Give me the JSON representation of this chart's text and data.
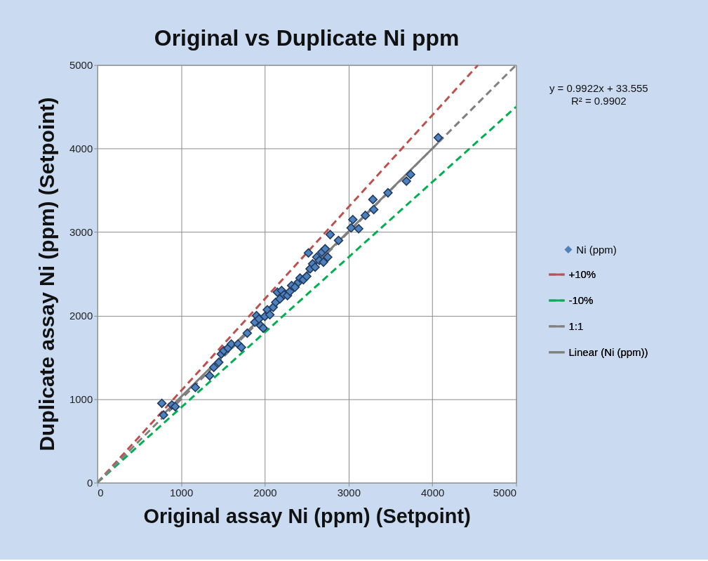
{
  "chart_data": {
    "type": "scatter",
    "title": "Original vs Duplicate Ni ppm",
    "xlabel": "Original assay Ni (ppm) (Setpoint)",
    "ylabel": "Duplicate assay Ni (ppm) (Setpoint)",
    "xlim": [
      0,
      5000
    ],
    "ylim": [
      0,
      5000
    ],
    "xticks": [
      0,
      1000,
      2000,
      3000,
      4000,
      5000
    ],
    "yticks": [
      0,
      1000,
      2000,
      3000,
      4000,
      5000
    ],
    "grid": true,
    "legend": "right",
    "annotations": [
      "y = 0.9922x + 33.555",
      "R² = 0.9902"
    ],
    "series": [
      {
        "name": "Ni (ppm)",
        "marker": "diamond",
        "color": "#4f81bd",
        "x": [
          770,
          790,
          890,
          930,
          1170,
          1340,
          1390,
          1450,
          1480,
          1510,
          1560,
          1600,
          1680,
          1720,
          1790,
          1880,
          1900,
          1930,
          1950,
          1980,
          2000,
          2030,
          2060,
          2100,
          2130,
          2150,
          2180,
          2200,
          2230,
          2270,
          2300,
          2320,
          2360,
          2400,
          2420,
          2460,
          2500,
          2520,
          2540,
          2570,
          2600,
          2620,
          2650,
          2680,
          2700,
          2720,
          2750,
          2780,
          2880,
          3030,
          3050,
          3120,
          3200,
          3290,
          3300,
          3470,
          3690,
          3740,
          4070
        ],
        "values": [
          950,
          810,
          930,
          910,
          1140,
          1280,
          1380,
          1440,
          1540,
          1580,
          1610,
          1660,
          1660,
          1620,
          1790,
          1920,
          2000,
          1960,
          1880,
          1850,
          1990,
          2070,
          2010,
          2100,
          2160,
          2280,
          2200,
          2300,
          2250,
          2240,
          2290,
          2360,
          2340,
          2400,
          2450,
          2430,
          2470,
          2750,
          2560,
          2620,
          2580,
          2700,
          2660,
          2760,
          2640,
          2800,
          2700,
          2970,
          2900,
          3050,
          3150,
          3040,
          3200,
          3390,
          3270,
          3470,
          3610,
          3690,
          4130
        ]
      },
      {
        "name": "+10%",
        "type": "line",
        "line_style": "dashed",
        "color": "#c0504d",
        "x": [
          0,
          4545
        ],
        "values": [
          0,
          5000
        ]
      },
      {
        "name": "-10%",
        "type": "line",
        "line_style": "dashed",
        "color": "#00b050",
        "x": [
          0,
          5000
        ],
        "values": [
          0,
          4500
        ]
      },
      {
        "name": "1:1",
        "type": "line",
        "line_style": "dashed",
        "color": "#808080",
        "x": [
          0,
          5000
        ],
        "values": [
          0,
          5000
        ]
      },
      {
        "name": "Linear (Ni (ppm))",
        "type": "line",
        "line_style": "solid",
        "color": "#7f7f7f",
        "x": [
          770,
          4070
        ],
        "values": [
          800,
          4070
        ]
      }
    ]
  }
}
